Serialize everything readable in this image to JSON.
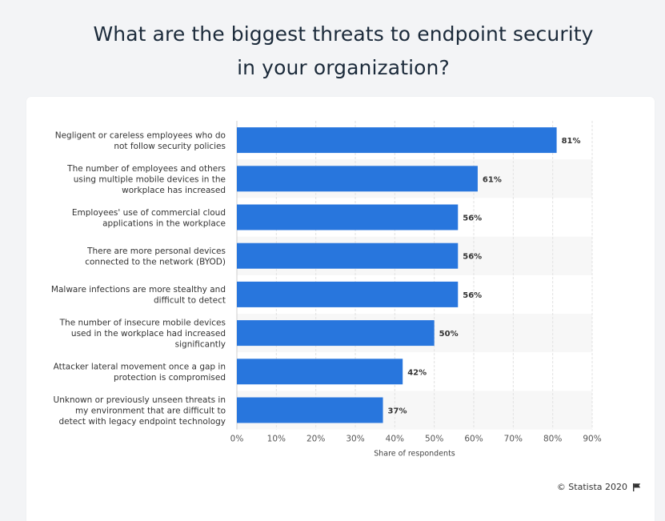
{
  "chart_data": {
    "type": "bar",
    "orientation": "horizontal",
    "title": "What are the biggest threats to endpoint security in your organization?",
    "title_lines": [
      "What are the biggest threats to endpoint security",
      "in your organization?"
    ],
    "categories": [
      "Negligent or careless employees who do not follow security policies",
      "The number of employees and others using multiple mobile devices in the workplace has increased",
      "Employees' use of commercial cloud applications in the workplace",
      "There are more personal devices connected to the network (BYOD)",
      "Malware infections are more stealthy and difficult to detect",
      "The number of insecure mobile devices used in the workplace had increased significantly",
      "Attacker lateral movement once a gap in protection is compromised",
      "Unknown or previously unseen threats in my environment that are difficult to detect with legacy endpoint technology"
    ],
    "category_lines": [
      [
        "Negligent or careless employees who do",
        "not follow security policies"
      ],
      [
        "The number of employees and others",
        "using multiple mobile devices in the",
        "workplace has increased"
      ],
      [
        "Employees' use of commercial cloud",
        "applications in the workplace"
      ],
      [
        "There are more personal devices",
        "connected to the network (BYOD)"
      ],
      [
        "Malware infections are more stealthy and",
        "difficult to detect"
      ],
      [
        "The number of insecure mobile devices",
        "used in the workplace had increased",
        "significantly"
      ],
      [
        "Attacker lateral movement once a gap in",
        "protection is compromised"
      ],
      [
        "Unknown or previously unseen threats in",
        "my environment that are difficult to",
        "detect with legacy endpoint technology"
      ]
    ],
    "values": [
      81,
      61,
      56,
      56,
      56,
      50,
      42,
      37
    ],
    "value_labels": [
      "81%",
      "61%",
      "56%",
      "56%",
      "56%",
      "50%",
      "42%",
      "37%"
    ],
    "xlabel": "Share of respondents",
    "ylabel": "",
    "xlim": [
      0,
      90
    ],
    "xticks": [
      0,
      10,
      20,
      30,
      40,
      50,
      60,
      70,
      80,
      90
    ],
    "xtick_labels": [
      "0%",
      "10%",
      "20%",
      "30%",
      "40%",
      "50%",
      "60%",
      "70%",
      "80%",
      "90%"
    ],
    "grid": true,
    "legend": "none",
    "bar_color": "#2876dd"
  },
  "footer": {
    "credit": "© Statista 2020",
    "icon": "flag-icon"
  }
}
